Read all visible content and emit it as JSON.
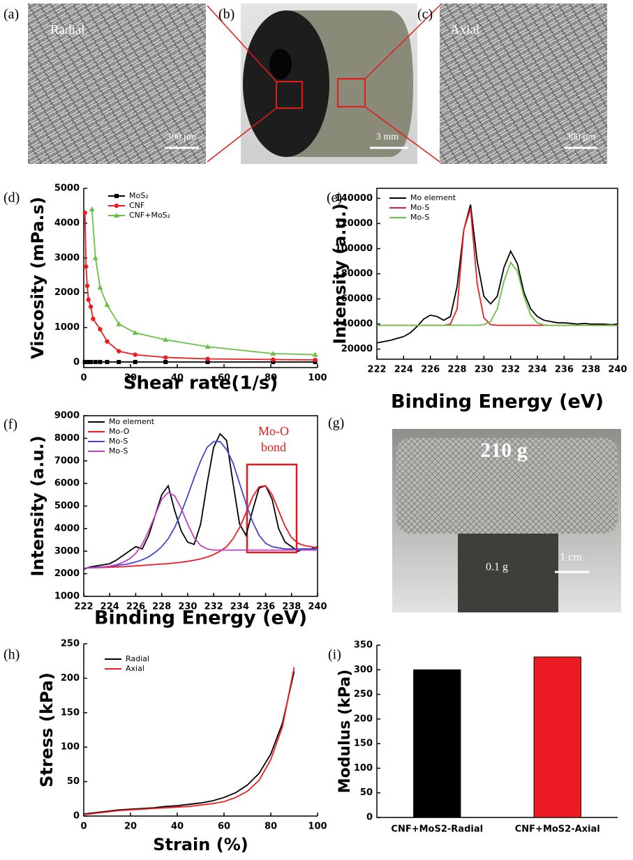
{
  "images": [
    {
      "label": "(a)",
      "texts": [
        "Radial",
        "300 μm"
      ]
    },
    {
      "label": "(b)",
      "texts": [
        "3 mm"
      ]
    },
    {
      "label": "(c)",
      "texts": [
        "Axial",
        "300 μm"
      ]
    },
    {
      "label": "(g)",
      "texts": [
        "210 g",
        "0.1 g",
        "1 cm"
      ]
    }
  ],
  "chart_data": [
    {
      "type": "line",
      "panel_label": "(d)",
      "y_label": "Viscosity (mPa.s)",
      "x_label": "Shear rate(1/s)",
      "xlim": [
        0,
        100
      ],
      "xticks": [
        0,
        20,
        40,
        60,
        80,
        100
      ],
      "ylim": [
        -150,
        5000
      ],
      "yticks": [
        0,
        1000,
        2000,
        3000,
        4000,
        5000
      ],
      "series": [
        {
          "name": "MoS₂",
          "color": "#000000",
          "marker": "square",
          "x": [
            0.5,
            1,
            2,
            3,
            5,
            7,
            10,
            15,
            22,
            35,
            53,
            81,
            99
          ],
          "values": [
            10,
            10,
            10,
            10,
            10,
            10,
            10,
            10,
            10,
            10,
            10,
            10,
            10
          ]
        },
        {
          "name": "CNF",
          "color": "#ed1c24",
          "marker": "circle",
          "x": [
            0.5,
            1,
            1.5,
            2,
            3,
            4,
            7,
            10,
            15,
            22,
            35,
            53,
            81,
            99
          ],
          "values": [
            4300,
            2750,
            2200,
            1800,
            1600,
            1250,
            950,
            600,
            320,
            220,
            140,
            100,
            80,
            70
          ]
        },
        {
          "name": "CNF+MoS₂",
          "color": "#6abf45",
          "marker": "triangle",
          "x": [
            3.5,
            5,
            7,
            10,
            15,
            22,
            35,
            53,
            81,
            99
          ],
          "values": [
            4400,
            3000,
            2150,
            1650,
            1100,
            850,
            650,
            450,
            250,
            220
          ]
        }
      ]
    },
    {
      "type": "line",
      "panel_label": "(e)",
      "y_label": "Intensity (a.u.)",
      "x_label": "Binding Energy (eV)",
      "xlim": [
        222,
        240
      ],
      "xticks": [
        222,
        224,
        226,
        228,
        230,
        232,
        234,
        236,
        238,
        240
      ],
      "ylim": [
        12000,
        148000
      ],
      "yticks": [
        20000,
        40000,
        60000,
        80000,
        100000,
        120000,
        140000
      ],
      "x": [
        222,
        222.5,
        223,
        223.5,
        224,
        224.5,
        225,
        225.5,
        226,
        226.5,
        227,
        227.5,
        228,
        228.5,
        229,
        229.5,
        230,
        230.5,
        231,
        231.5,
        232,
        232.5,
        233,
        233.5,
        234,
        234.5,
        235,
        235.5,
        236,
        236.5,
        237,
        237.5,
        238,
        238.5,
        239,
        239.5,
        240
      ],
      "series": [
        {
          "name": "Mo element",
          "color": "#000000",
          "values": [
            25000,
            26000,
            27000,
            28500,
            30000,
            33000,
            38000,
            44000,
            47000,
            46000,
            43000,
            46000,
            70000,
            115000,
            135000,
            90000,
            62000,
            56000,
            62000,
            85000,
            98000,
            88000,
            65000,
            52000,
            46000,
            43000,
            42000,
            41000,
            41000,
            40500,
            40000,
            40500,
            40000,
            40000,
            40000,
            39500,
            40000
          ]
        },
        {
          "name": "Mo-S",
          "color": "#ed1c24",
          "values": [
            39000,
            39000,
            39000,
            39000,
            39000,
            39000,
            39000,
            39000,
            39000,
            39000,
            39000,
            40000,
            52000,
            115000,
            132000,
            72000,
            45000,
            39500,
            39000,
            39000,
            39000,
            39000,
            39000,
            39000,
            39000,
            39000,
            39000,
            39000,
            39000,
            39000,
            39000,
            39000,
            39000,
            39000,
            39000,
            39000,
            39000
          ]
        },
        {
          "name": "Mo-S",
          "color": "#6abf45",
          "values": [
            39000,
            39000,
            39000,
            39000,
            39000,
            39000,
            39000,
            39000,
            39000,
            39000,
            39000,
            39000,
            39000,
            39000,
            39000,
            39000,
            39500,
            42000,
            52000,
            74000,
            89000,
            82000,
            62000,
            47000,
            41000,
            39200,
            39000,
            39000,
            39000,
            39000,
            39000,
            39000,
            39000,
            39000,
            39000,
            39000,
            39000
          ]
        }
      ]
    },
    {
      "type": "line",
      "panel_label": "(f)",
      "y_label": "Intensity (a.u.)",
      "x_label": "Binding Energy (eV)",
      "annotations": [
        "Mo-O",
        "bond"
      ],
      "xlim": [
        222,
        240
      ],
      "xticks": [
        222,
        224,
        226,
        228,
        230,
        232,
        234,
        236,
        238,
        240
      ],
      "ylim": [
        1000,
        9000
      ],
      "yticks": [
        1000,
        2000,
        3000,
        4000,
        5000,
        6000,
        7000,
        8000,
        9000
      ],
      "x": [
        222,
        222.5,
        223,
        223.5,
        224,
        224.5,
        225,
        225.5,
        226,
        226.5,
        227,
        227.5,
        228,
        228.5,
        229,
        229.5,
        230,
        230.5,
        231,
        231.5,
        232,
        232.5,
        233,
        233.5,
        234,
        234.5,
        235,
        235.5,
        236,
        236.5,
        237,
        237.5,
        238,
        238.5,
        239,
        239.5,
        240
      ],
      "series": [
        {
          "name": "Mo element",
          "color": "#000000",
          "values": [
            2200,
            2300,
            2350,
            2400,
            2450,
            2600,
            2800,
            3000,
            3200,
            3100,
            3700,
            4600,
            5500,
            5900,
            4800,
            3900,
            3400,
            3300,
            4200,
            6000,
            7600,
            8200,
            7900,
            6000,
            4200,
            3700,
            4800,
            5800,
            5900,
            5300,
            4000,
            3400,
            3200,
            3000,
            3100,
            3100,
            3200
          ]
        },
        {
          "name": "Mo-O",
          "color": "#ed1c24",
          "values": [
            2250,
            2260,
            2270,
            2280,
            2290,
            2300,
            2310,
            2330,
            2350,
            2370,
            2390,
            2410,
            2430,
            2450,
            2480,
            2510,
            2550,
            2600,
            2660,
            2740,
            2850,
            3000,
            3200,
            3550,
            4050,
            4700,
            5400,
            5850,
            5900,
            5500,
            4800,
            4100,
            3600,
            3350,
            3250,
            3200,
            3150
          ]
        },
        {
          "name": "Mo-S",
          "color": "#3f48cc",
          "values": [
            2250,
            2270,
            2290,
            2310,
            2330,
            2360,
            2400,
            2450,
            2520,
            2620,
            2750,
            2950,
            3200,
            3550,
            4050,
            4700,
            5450,
            6250,
            7000,
            7600,
            7850,
            7850,
            7500,
            6900,
            6000,
            5100,
            4300,
            3700,
            3350,
            3200,
            3150,
            3100,
            3100,
            3100,
            3100,
            3100,
            3100
          ]
        },
        {
          "name": "Mo-S",
          "color": "#c040c0",
          "values": [
            2250,
            2260,
            2280,
            2300,
            2340,
            2400,
            2500,
            2650,
            2900,
            3300,
            3900,
            4600,
            5300,
            5600,
            5450,
            4900,
            4200,
            3600,
            3250,
            3100,
            3050,
            3050,
            3050,
            3050,
            3050,
            3050,
            3050,
            3050,
            3050,
            3050,
            3050,
            3050,
            3050,
            3050,
            3050,
            3050,
            3050
          ]
        }
      ]
    },
    {
      "type": "line",
      "panel_label": "(h)",
      "y_label": "Stress (kPa)",
      "x_label": "Strain (%)",
      "xlim": [
        0,
        100
      ],
      "xticks": [
        0,
        20,
        40,
        60,
        80,
        100
      ],
      "ylim": [
        0,
        250
      ],
      "yticks": [
        0,
        50,
        100,
        150,
        200,
        250
      ],
      "x": [
        0,
        5,
        10,
        15,
        20,
        25,
        30,
        35,
        40,
        45,
        50,
        55,
        60,
        65,
        70,
        75,
        80,
        85,
        90
      ],
      "series": [
        {
          "name": "Radial",
          "color": "#000000",
          "values": [
            3,
            5,
            7,
            9,
            10,
            11,
            12,
            14,
            15,
            17,
            19,
            22,
            27,
            34,
            45,
            62,
            90,
            135,
            210
          ]
        },
        {
          "name": "Axial",
          "color": "#ed1c24",
          "values": [
            2,
            4,
            6,
            8,
            9,
            10,
            11,
            12,
            13,
            14,
            16,
            18,
            21,
            27,
            36,
            52,
            82,
            130,
            216
          ]
        }
      ]
    },
    {
      "type": "bar",
      "panel_label": "(i)",
      "y_label": "Modulus (kPa)",
      "categories": [
        "CNF+MoS2-Radial",
        "CNF+MoS2-Axial"
      ],
      "values": [
        300,
        326
      ],
      "colors": [
        "#000000",
        "#ed1c24"
      ],
      "ylim": [
        0,
        350
      ],
      "yticks": [
        0,
        50,
        100,
        150,
        200,
        250,
        300,
        350
      ]
    }
  ]
}
